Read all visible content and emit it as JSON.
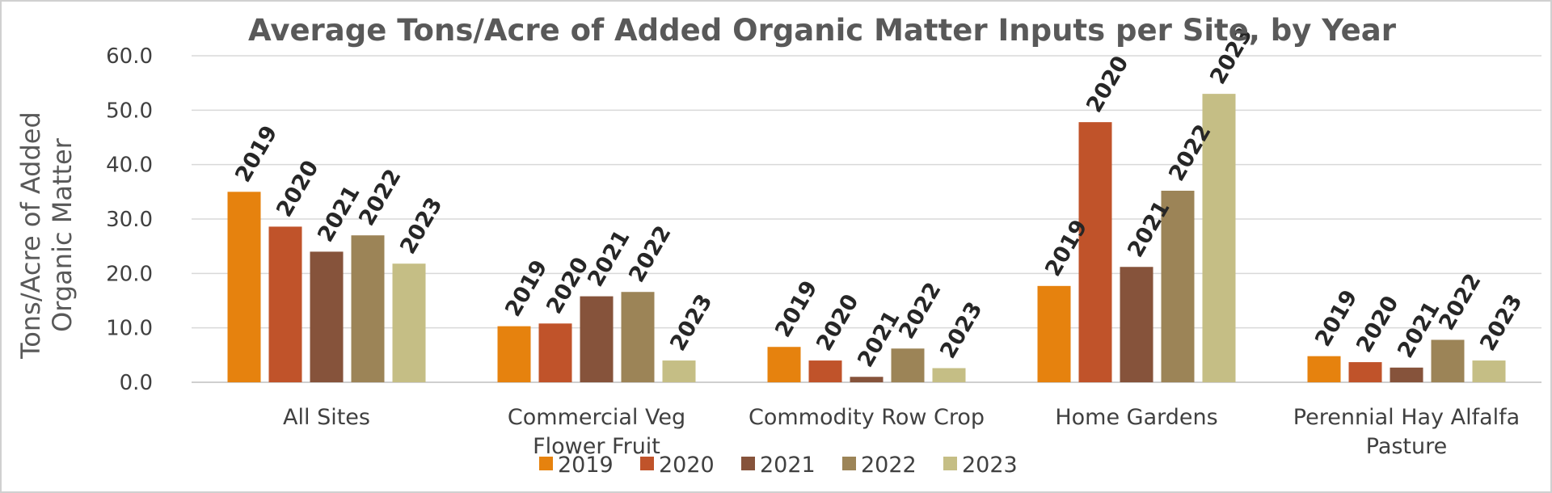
{
  "chart_data": {
    "type": "bar",
    "title": "Average Tons/Acre of Added Organic Matter Inputs per Site, by Year",
    "ylabel": [
      "Tons/Acre of Added",
      "Organic Matter"
    ],
    "xlabel": "",
    "ylim": [
      0,
      60
    ],
    "yticks": [
      "0.0",
      "10.0",
      "20.0",
      "30.0",
      "40.0",
      "50.0",
      "60.0"
    ],
    "categories": [
      [
        "All Sites"
      ],
      [
        "Commercial Veg",
        "Flower Fruit"
      ],
      [
        "Commodity Row Crop"
      ],
      [
        "Home Gardens"
      ],
      [
        "Perennial Hay Alfalfa",
        "Pasture"
      ]
    ],
    "series": [
      {
        "name": "2019",
        "color": "#E6820E",
        "values": [
          35.0,
          10.3,
          6.5,
          17.7,
          4.8
        ]
      },
      {
        "name": "2020",
        "color": "#C0532A",
        "values": [
          28.6,
          10.8,
          4.0,
          47.8,
          3.7
        ]
      },
      {
        "name": "2021",
        "color": "#86533B",
        "values": [
          24.0,
          15.8,
          1.0,
          21.2,
          2.7
        ]
      },
      {
        "name": "2022",
        "color": "#9C8457",
        "values": [
          27.0,
          16.6,
          6.2,
          35.2,
          7.8
        ]
      },
      {
        "name": "2023",
        "color": "#C5BE85",
        "values": [
          21.8,
          4.0,
          2.6,
          53.0,
          4.0
        ]
      }
    ],
    "grid": true,
    "legend": "bottom"
  }
}
